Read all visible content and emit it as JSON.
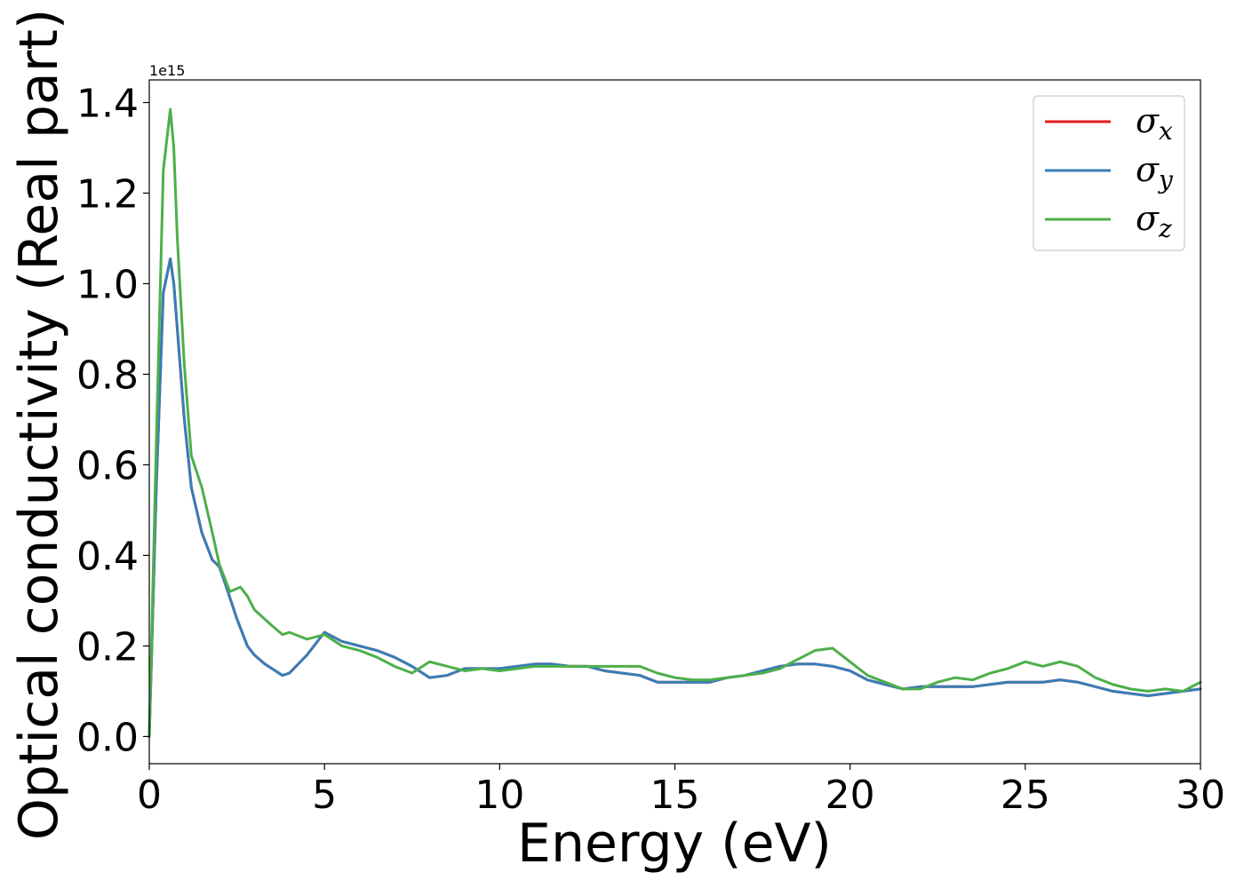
{
  "chart_data": {
    "type": "line",
    "title": "",
    "xlabel": "Energy (eV)",
    "ylabel": "Optical conductivity (Real part)",
    "y_offset_label": "1e15",
    "xlim": [
      0,
      30
    ],
    "ylim": [
      -0.06,
      1.45
    ],
    "xticks": [
      "0",
      "5",
      "10",
      "15",
      "20",
      "25",
      "30"
    ],
    "yticks": [
      "0.0",
      "0.2",
      "0.4",
      "0.6",
      "0.8",
      "1.0",
      "1.2",
      "1.4"
    ],
    "xtick_values": [
      0,
      5,
      10,
      15,
      20,
      25,
      30
    ],
    "ytick_values": [
      0.0,
      0.2,
      0.4,
      0.6,
      0.8,
      1.0,
      1.2,
      1.4
    ],
    "grid": false,
    "legend_position": "top-right",
    "series": [
      {
        "name": "σx",
        "symbol": "σ",
        "subscript": "x",
        "color": "#e41a1c",
        "x": [
          0,
          0.2,
          0.4,
          0.6,
          0.7,
          0.8,
          1.0,
          1.2,
          1.5,
          1.8,
          2.0,
          2.2,
          2.5,
          2.8,
          3.0,
          3.3,
          3.5,
          3.8,
          4.0,
          4.5,
          5.0,
          5.5,
          6.0,
          6.5,
          7.0,
          7.5,
          8.0,
          8.5,
          9.0,
          9.5,
          10.0,
          10.5,
          11.0,
          11.5,
          12.0,
          12.5,
          13.0,
          13.5,
          14.0,
          14.5,
          15.0,
          15.5,
          16.0,
          16.5,
          17.0,
          17.5,
          18.0,
          18.5,
          19.0,
          19.5,
          20.0,
          20.5,
          21.0,
          21.5,
          22.0,
          22.5,
          23.0,
          23.5,
          24.0,
          24.5,
          25.0,
          25.5,
          26.0,
          26.5,
          27.0,
          27.5,
          28.0,
          28.5,
          29.0,
          29.5,
          30.0
        ],
        "y": [
          0.0,
          0.55,
          0.98,
          1.055,
          1.0,
          0.9,
          0.7,
          0.55,
          0.45,
          0.39,
          0.375,
          0.33,
          0.26,
          0.2,
          0.18,
          0.16,
          0.15,
          0.135,
          0.14,
          0.18,
          0.23,
          0.21,
          0.2,
          0.19,
          0.175,
          0.155,
          0.13,
          0.135,
          0.15,
          0.15,
          0.15,
          0.155,
          0.16,
          0.16,
          0.155,
          0.155,
          0.145,
          0.14,
          0.135,
          0.12,
          0.12,
          0.12,
          0.12,
          0.13,
          0.135,
          0.145,
          0.155,
          0.16,
          0.16,
          0.155,
          0.145,
          0.125,
          0.115,
          0.105,
          0.11,
          0.11,
          0.11,
          0.11,
          0.115,
          0.12,
          0.12,
          0.12,
          0.125,
          0.12,
          0.11,
          0.1,
          0.095,
          0.09,
          0.095,
          0.1,
          0.105
        ]
      },
      {
        "name": "σy",
        "symbol": "σ",
        "subscript": "y",
        "color": "#377eb8",
        "x": [
          0,
          0.2,
          0.4,
          0.6,
          0.7,
          0.8,
          1.0,
          1.2,
          1.5,
          1.8,
          2.0,
          2.2,
          2.5,
          2.8,
          3.0,
          3.3,
          3.5,
          3.8,
          4.0,
          4.5,
          5.0,
          5.5,
          6.0,
          6.5,
          7.0,
          7.5,
          8.0,
          8.5,
          9.0,
          9.5,
          10.0,
          10.5,
          11.0,
          11.5,
          12.0,
          12.5,
          13.0,
          13.5,
          14.0,
          14.5,
          15.0,
          15.5,
          16.0,
          16.5,
          17.0,
          17.5,
          18.0,
          18.5,
          19.0,
          19.5,
          20.0,
          20.5,
          21.0,
          21.5,
          22.0,
          22.5,
          23.0,
          23.5,
          24.0,
          24.5,
          25.0,
          25.5,
          26.0,
          26.5,
          27.0,
          27.5,
          28.0,
          28.5,
          29.0,
          29.5,
          30.0
        ],
        "y": [
          0.0,
          0.55,
          0.98,
          1.055,
          1.0,
          0.9,
          0.7,
          0.55,
          0.45,
          0.39,
          0.375,
          0.33,
          0.26,
          0.2,
          0.18,
          0.16,
          0.15,
          0.135,
          0.14,
          0.18,
          0.23,
          0.21,
          0.2,
          0.19,
          0.175,
          0.155,
          0.13,
          0.135,
          0.15,
          0.15,
          0.15,
          0.155,
          0.16,
          0.16,
          0.155,
          0.155,
          0.145,
          0.14,
          0.135,
          0.12,
          0.12,
          0.12,
          0.12,
          0.13,
          0.135,
          0.145,
          0.155,
          0.16,
          0.16,
          0.155,
          0.145,
          0.125,
          0.115,
          0.105,
          0.11,
          0.11,
          0.11,
          0.11,
          0.115,
          0.12,
          0.12,
          0.12,
          0.125,
          0.12,
          0.11,
          0.1,
          0.095,
          0.09,
          0.095,
          0.1,
          0.105
        ]
      },
      {
        "name": "σz",
        "symbol": "σ",
        "subscript": "z",
        "color": "#4daf4a",
        "x": [
          0,
          0.2,
          0.4,
          0.6,
          0.7,
          0.8,
          1.0,
          1.2,
          1.5,
          1.8,
          2.0,
          2.3,
          2.6,
          2.8,
          3.0,
          3.5,
          3.8,
          4.0,
          4.5,
          5.0,
          5.5,
          6.0,
          6.5,
          7.0,
          7.5,
          8.0,
          8.5,
          9.0,
          9.5,
          10.0,
          10.5,
          11.0,
          11.5,
          12.0,
          12.5,
          13.0,
          13.5,
          14.0,
          14.5,
          15.0,
          15.5,
          16.0,
          16.5,
          17.0,
          17.5,
          18.0,
          18.5,
          19.0,
          19.5,
          20.0,
          20.5,
          21.0,
          21.5,
          22.0,
          22.5,
          23.0,
          23.5,
          24.0,
          24.5,
          25.0,
          25.5,
          26.0,
          26.5,
          27.0,
          27.5,
          28.0,
          28.5,
          29.0,
          29.5,
          30.0
        ],
        "y": [
          0.0,
          0.65,
          1.25,
          1.385,
          1.3,
          1.1,
          0.82,
          0.62,
          0.55,
          0.45,
          0.38,
          0.32,
          0.33,
          0.31,
          0.28,
          0.245,
          0.225,
          0.23,
          0.215,
          0.225,
          0.2,
          0.19,
          0.175,
          0.155,
          0.14,
          0.165,
          0.155,
          0.145,
          0.15,
          0.145,
          0.15,
          0.155,
          0.155,
          0.155,
          0.155,
          0.155,
          0.155,
          0.155,
          0.14,
          0.13,
          0.125,
          0.125,
          0.13,
          0.135,
          0.14,
          0.15,
          0.17,
          0.19,
          0.195,
          0.165,
          0.135,
          0.12,
          0.105,
          0.105,
          0.12,
          0.13,
          0.125,
          0.14,
          0.15,
          0.165,
          0.155,
          0.165,
          0.155,
          0.13,
          0.115,
          0.105,
          0.1,
          0.105,
          0.1,
          0.12
        ]
      }
    ]
  }
}
